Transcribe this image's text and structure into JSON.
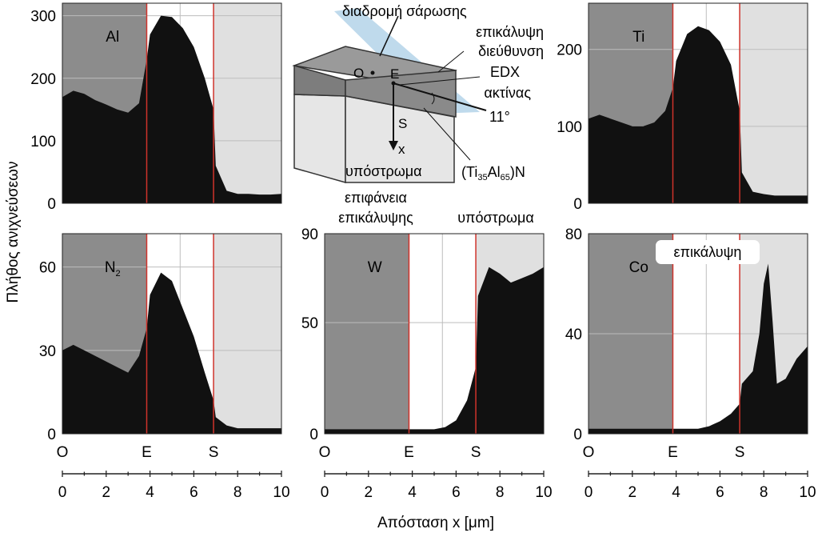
{
  "ylabel": "Πλήθος ανιχνεύσεων",
  "xlabel": "Απόσταση x [μm]",
  "region_letters": [
    "O",
    "E",
    "S"
  ],
  "colors": {
    "coating_region": "#8c8c8c",
    "interface_region": "#ffffff",
    "substrate_region": "#e0e0e0",
    "signal": "#111111",
    "boundary_line": "#d0332b",
    "grid": "#bdbdbd"
  },
  "diagram": {
    "scan_path": "διαδρομή σάρωσης",
    "coating_direction_1": "επικάλυψη",
    "coating_direction_2": "διεύθυνση",
    "edx_1": "EDX",
    "edx_2": "ακτίνας",
    "angle": "11°",
    "point_o": "O",
    "point_e": "E",
    "point_s": "S",
    "axis_x": "x",
    "substrate": "υπόστρωμα",
    "compound_a": "(Ti",
    "compound_sub1": "35",
    "compound_b": "Al",
    "compound_sub2": "65",
    "compound_c": ")N"
  },
  "region_labels": {
    "coating_surface_1": "επιφάνεια",
    "coating_surface_2": "επικάλυψης",
    "substrate": "υπόστρωμα",
    "coating": "επικάλυψη"
  },
  "chart_data": [
    {
      "type": "area",
      "element": "Al",
      "xlim": [
        0,
        10
      ],
      "ylim": [
        0,
        320
      ],
      "yticks": [
        0,
        100,
        200,
        300
      ],
      "boundaries": {
        "E": 3.85,
        "S": 6.9
      },
      "x": [
        0,
        0.5,
        1,
        1.5,
        2,
        2.5,
        3,
        3.5,
        3.85,
        4,
        4.5,
        5,
        5.5,
        6,
        6.5,
        6.9,
        7,
        7.5,
        8,
        8.5,
        9,
        9.5,
        10
      ],
      "values": [
        170,
        180,
        175,
        165,
        158,
        150,
        145,
        160,
        230,
        270,
        300,
        298,
        280,
        250,
        200,
        150,
        60,
        20,
        15,
        15,
        14,
        14,
        15
      ]
    },
    {
      "type": "area",
      "element": "Ti",
      "xlim": [
        0,
        10
      ],
      "ylim": [
        0,
        260
      ],
      "yticks": [
        0,
        100,
        200
      ],
      "boundaries": {
        "E": 3.85,
        "S": 6.9
      },
      "x": [
        0,
        0.5,
        1,
        1.5,
        2,
        2.5,
        3,
        3.5,
        3.85,
        4,
        4.5,
        5,
        5.5,
        6,
        6.5,
        6.9,
        7,
        7.5,
        8,
        8.5,
        9,
        9.5,
        10
      ],
      "values": [
        110,
        115,
        110,
        105,
        100,
        100,
        105,
        120,
        150,
        185,
        220,
        230,
        225,
        210,
        180,
        120,
        40,
        15,
        12,
        10,
        10,
        10,
        10
      ]
    },
    {
      "type": "area",
      "element": "N",
      "element_sub": "2",
      "xlim": [
        0,
        10
      ],
      "ylim": [
        0,
        72
      ],
      "yticks": [
        0,
        30,
        60
      ],
      "boundaries": {
        "E": 3.85,
        "S": 6.9
      },
      "x": [
        0,
        0.5,
        1,
        1.5,
        2,
        2.5,
        3,
        3.5,
        3.85,
        4,
        4.5,
        5,
        5.5,
        6,
        6.5,
        6.9,
        7,
        7.5,
        8,
        8.5,
        9,
        9.5,
        10
      ],
      "values": [
        30,
        32,
        30,
        28,
        26,
        24,
        22,
        28,
        38,
        50,
        58,
        55,
        45,
        35,
        22,
        12,
        6,
        3,
        2,
        2,
        2,
        2,
        2
      ]
    },
    {
      "type": "area",
      "element": "W",
      "xlim": [
        0,
        10
      ],
      "ylim": [
        0,
        90
      ],
      "yticks": [
        0,
        50,
        90
      ],
      "boundaries": {
        "E": 3.85,
        "S": 6.9
      },
      "x": [
        0,
        0.5,
        1,
        1.5,
        2,
        2.5,
        3,
        3.5,
        3.85,
        4,
        4.5,
        5,
        5.5,
        6,
        6.5,
        6.9,
        7,
        7.5,
        8,
        8.5,
        9,
        9.5,
        10
      ],
      "values": [
        2,
        2,
        2,
        2,
        2,
        2,
        2,
        2,
        2,
        2,
        2,
        2,
        3,
        6,
        15,
        30,
        62,
        75,
        72,
        68,
        70,
        72,
        75
      ]
    },
    {
      "type": "area",
      "element": "Co",
      "xlim": [
        0,
        10
      ],
      "ylim": [
        0,
        80
      ],
      "yticks": [
        0,
        40,
        80
      ],
      "boundaries": {
        "E": 3.85,
        "S": 6.9
      },
      "x": [
        0,
        0.5,
        1,
        1.5,
        2,
        2.5,
        3,
        3.5,
        3.85,
        4,
        4.5,
        5,
        5.5,
        6,
        6.5,
        6.9,
        7,
        7.5,
        7.8,
        8.0,
        8.2,
        8.4,
        8.6,
        9,
        9.5,
        10
      ],
      "values": [
        2,
        2,
        2,
        2,
        2,
        2,
        2,
        2,
        2,
        2,
        2,
        2,
        3,
        5,
        8,
        12,
        20,
        25,
        40,
        60,
        68,
        45,
        20,
        22,
        30,
        35
      ]
    }
  ],
  "x_axes": [
    {
      "ticks": [
        0,
        2,
        4,
        6,
        8,
        10
      ]
    },
    {
      "ticks": [
        0,
        2,
        4,
        6,
        8,
        10
      ]
    },
    {
      "ticks": [
        0,
        2,
        4,
        6,
        8,
        10
      ]
    }
  ]
}
